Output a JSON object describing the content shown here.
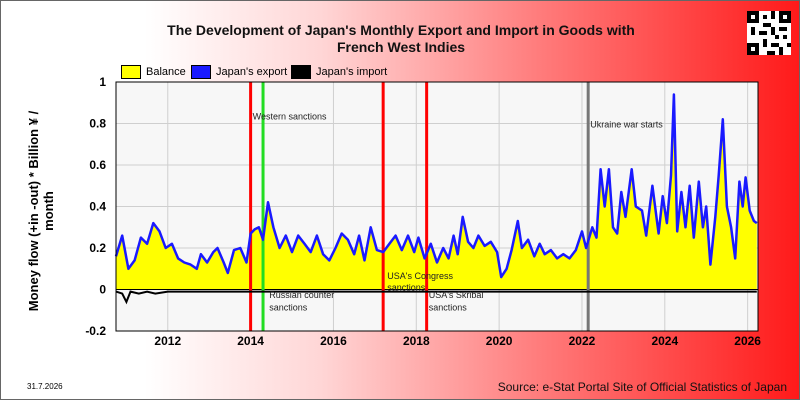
{
  "title_line1": "The Development of Japan's Monthly Export and Import in Goods with",
  "title_line2": "French West Indies",
  "date_stamp": "31.7.2026",
  "source": "Source: e-Stat Portal Site of Official Statistics of Japan",
  "chart_data": {
    "type": "area",
    "ylabel": "Money flow (+in -out) * Billion ¥ / month",
    "ylim": [
      -0.2,
      1
    ],
    "yticks": [
      "1",
      "0.8",
      "0.6",
      "0.4",
      "0.2",
      "0",
      "-0.2"
    ],
    "xlim": [
      2010.75,
      2026.25
    ],
    "xticks": [
      "2012",
      "2014",
      "2016",
      "2018",
      "2020",
      "2022",
      "2024",
      "2026"
    ],
    "grid": true,
    "legend_position": "top",
    "series": [
      {
        "name": "Balance",
        "color": "#ffff00"
      },
      {
        "name": "Japan's export",
        "color": "#1a1aff"
      },
      {
        "name": "Japan's import",
        "color": "#000000"
      }
    ],
    "export_points": [
      [
        2010.75,
        0.16
      ],
      [
        2010.9,
        0.26
      ],
      [
        2011.05,
        0.1
      ],
      [
        2011.2,
        0.14
      ],
      [
        2011.35,
        0.25
      ],
      [
        2011.5,
        0.22
      ],
      [
        2011.65,
        0.32
      ],
      [
        2011.8,
        0.28
      ],
      [
        2011.95,
        0.2
      ],
      [
        2012.1,
        0.22
      ],
      [
        2012.25,
        0.15
      ],
      [
        2012.4,
        0.13
      ],
      [
        2012.55,
        0.12
      ],
      [
        2012.7,
        0.1
      ],
      [
        2012.8,
        0.17
      ],
      [
        2012.95,
        0.13
      ],
      [
        2013.1,
        0.18
      ],
      [
        2013.2,
        0.2
      ],
      [
        2013.35,
        0.13
      ],
      [
        2013.45,
        0.08
      ],
      [
        2013.6,
        0.19
      ],
      [
        2013.75,
        0.2
      ],
      [
        2013.9,
        0.13
      ],
      [
        2014.0,
        0.27
      ],
      [
        2014.1,
        0.29
      ],
      [
        2014.2,
        0.3
      ],
      [
        2014.3,
        0.24
      ],
      [
        2014.42,
        0.42
      ],
      [
        2014.55,
        0.3
      ],
      [
        2014.7,
        0.2
      ],
      [
        2014.85,
        0.26
      ],
      [
        2015.0,
        0.18
      ],
      [
        2015.15,
        0.26
      ],
      [
        2015.3,
        0.22
      ],
      [
        2015.45,
        0.18
      ],
      [
        2015.6,
        0.26
      ],
      [
        2015.75,
        0.17
      ],
      [
        2015.9,
        0.14
      ],
      [
        2016.05,
        0.2
      ],
      [
        2016.2,
        0.27
      ],
      [
        2016.35,
        0.24
      ],
      [
        2016.5,
        0.17
      ],
      [
        2016.62,
        0.26
      ],
      [
        2016.75,
        0.14
      ],
      [
        2016.9,
        0.3
      ],
      [
        2017.05,
        0.19
      ],
      [
        2017.2,
        0.18
      ],
      [
        2017.35,
        0.22
      ],
      [
        2017.5,
        0.26
      ],
      [
        2017.65,
        0.19
      ],
      [
        2017.8,
        0.26
      ],
      [
        2017.95,
        0.18
      ],
      [
        2018.05,
        0.25
      ],
      [
        2018.2,
        0.15
      ],
      [
        2018.35,
        0.22
      ],
      [
        2018.5,
        0.13
      ],
      [
        2018.65,
        0.2
      ],
      [
        2018.78,
        0.15
      ],
      [
        2018.9,
        0.26
      ],
      [
        2019.0,
        0.17
      ],
      [
        2019.12,
        0.35
      ],
      [
        2019.25,
        0.23
      ],
      [
        2019.38,
        0.2
      ],
      [
        2019.5,
        0.26
      ],
      [
        2019.65,
        0.21
      ],
      [
        2019.8,
        0.23
      ],
      [
        2019.95,
        0.18
      ],
      [
        2020.05,
        0.06
      ],
      [
        2020.18,
        0.1
      ],
      [
        2020.3,
        0.19
      ],
      [
        2020.45,
        0.33
      ],
      [
        2020.55,
        0.2
      ],
      [
        2020.7,
        0.24
      ],
      [
        2020.85,
        0.16
      ],
      [
        2020.98,
        0.22
      ],
      [
        2021.1,
        0.17
      ],
      [
        2021.25,
        0.19
      ],
      [
        2021.4,
        0.15
      ],
      [
        2021.55,
        0.17
      ],
      [
        2021.7,
        0.15
      ],
      [
        2021.85,
        0.19
      ],
      [
        2022.0,
        0.28
      ],
      [
        2022.1,
        0.2
      ],
      [
        2022.25,
        0.3
      ],
      [
        2022.35,
        0.25
      ],
      [
        2022.45,
        0.58
      ],
      [
        2022.55,
        0.4
      ],
      [
        2022.65,
        0.58
      ],
      [
        2022.75,
        0.3
      ],
      [
        2022.85,
        0.27
      ],
      [
        2022.95,
        0.47
      ],
      [
        2023.05,
        0.35
      ],
      [
        2023.2,
        0.58
      ],
      [
        2023.3,
        0.4
      ],
      [
        2023.45,
        0.38
      ],
      [
        2023.55,
        0.26
      ],
      [
        2023.7,
        0.5
      ],
      [
        2023.85,
        0.27
      ],
      [
        2023.95,
        0.45
      ],
      [
        2024.05,
        0.32
      ],
      [
        2024.15,
        0.55
      ],
      [
        2024.22,
        0.94
      ],
      [
        2024.3,
        0.28
      ],
      [
        2024.4,
        0.47
      ],
      [
        2024.5,
        0.3
      ],
      [
        2024.6,
        0.5
      ],
      [
        2024.7,
        0.25
      ],
      [
        2024.82,
        0.52
      ],
      [
        2024.92,
        0.3
      ],
      [
        2025.0,
        0.4
      ],
      [
        2025.1,
        0.12
      ],
      [
        2025.22,
        0.35
      ],
      [
        2025.3,
        0.55
      ],
      [
        2025.4,
        0.82
      ],
      [
        2025.5,
        0.4
      ],
      [
        2025.6,
        0.3
      ],
      [
        2025.7,
        0.15
      ],
      [
        2025.8,
        0.52
      ],
      [
        2025.88,
        0.4
      ],
      [
        2025.95,
        0.54
      ],
      [
        2026.05,
        0.38
      ],
      [
        2026.15,
        0.33
      ],
      [
        2026.22,
        0.32
      ]
    ],
    "import_points": [
      [
        2010.75,
        -0.01
      ],
      [
        2010.9,
        -0.02
      ],
      [
        2011.0,
        -0.06
      ],
      [
        2011.1,
        -0.01
      ],
      [
        2011.3,
        -0.02
      ],
      [
        2011.5,
        -0.01
      ],
      [
        2011.7,
        -0.02
      ],
      [
        2012.0,
        -0.01
      ],
      [
        2013.0,
        -0.01
      ],
      [
        2014.0,
        -0.01
      ],
      [
        2015.0,
        -0.01
      ],
      [
        2016.0,
        -0.01
      ],
      [
        2017.0,
        -0.01
      ],
      [
        2018.0,
        -0.01
      ],
      [
        2019.0,
        -0.01
      ],
      [
        2020.0,
        -0.01
      ],
      [
        2021.0,
        -0.01
      ],
      [
        2022.0,
        -0.01
      ],
      [
        2023.0,
        -0.01
      ],
      [
        2024.0,
        -0.01
      ],
      [
        2025.0,
        -0.01
      ],
      [
        2026.0,
        -0.01
      ],
      [
        2026.22,
        -0.01
      ]
    ],
    "vertical_markers": [
      {
        "x": 2014.0,
        "color": "#ff0000",
        "label": ""
      },
      {
        "x": 2014.3,
        "color": "#22dd22",
        "label": ""
      },
      {
        "x": 2017.2,
        "color": "#ff0000",
        "label": ""
      },
      {
        "x": 2018.25,
        "color": "#ff0000",
        "label": ""
      },
      {
        "x": 2022.15,
        "color": "#777777",
        "label": ""
      }
    ],
    "annotations": [
      {
        "x": 2014.05,
        "y": 0.82,
        "text": "Western sanctions"
      },
      {
        "x": 2022.2,
        "y": 0.78,
        "text": "Ukraine war starts"
      },
      {
        "x": 2017.3,
        "y": 0.05,
        "text": "USA's Congress"
      },
      {
        "x": 2017.3,
        "y": -0.005,
        "text": "sanctions"
      },
      {
        "x": 2014.45,
        "y": -0.04,
        "text": "Russian counter"
      },
      {
        "x": 2014.45,
        "y": -0.1,
        "text": "sanctions"
      },
      {
        "x": 2018.3,
        "y": -0.04,
        "text": "USA's Skribal"
      },
      {
        "x": 2018.3,
        "y": -0.1,
        "text": "sanctions"
      }
    ]
  }
}
